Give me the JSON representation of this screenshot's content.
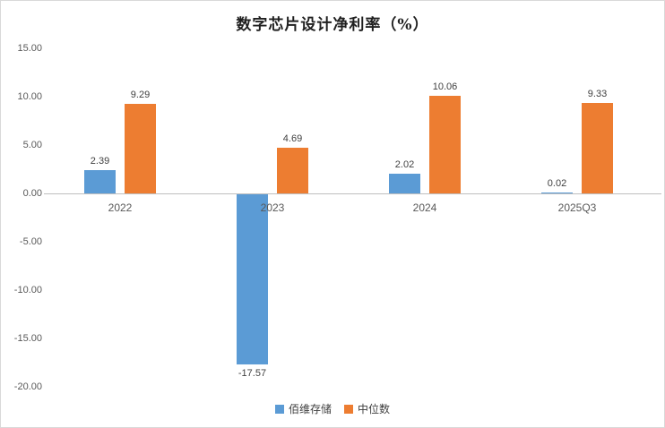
{
  "title": "数字芯片设计净利率（%）",
  "chart_data": {
    "type": "bar",
    "title": "数字芯片设计净利率（%）",
    "categories": [
      "2022",
      "2023",
      "2024",
      "2025Q3"
    ],
    "series": [
      {
        "name": "佰维存储",
        "color": "#5B9BD5",
        "values": [
          2.39,
          -17.57,
          2.02,
          0.02
        ],
        "labels": [
          "2.39",
          "-17.57",
          "2.02",
          "0.02"
        ]
      },
      {
        "name": "中位数",
        "color": "#ED7D31",
        "values": [
          9.29,
          4.69,
          10.06,
          9.33
        ],
        "labels": [
          "9.29",
          "4.69",
          "10.06",
          "9.33"
        ]
      }
    ],
    "ylim": [
      -20,
      15
    ],
    "ytick_step": 5,
    "ytick_labels": [
      "15.00",
      "10.00",
      "5.00",
      "0.00",
      "-5.00",
      "-10.00",
      "-15.00",
      "-20.00"
    ],
    "ytick_values": [
      15,
      10,
      5,
      0,
      -5,
      -10,
      -15,
      -20
    ],
    "grid": false,
    "legend_position": "bottom",
    "axis_color": "#bfbfbf",
    "text_color": "#595959",
    "label_color": "#404040"
  }
}
